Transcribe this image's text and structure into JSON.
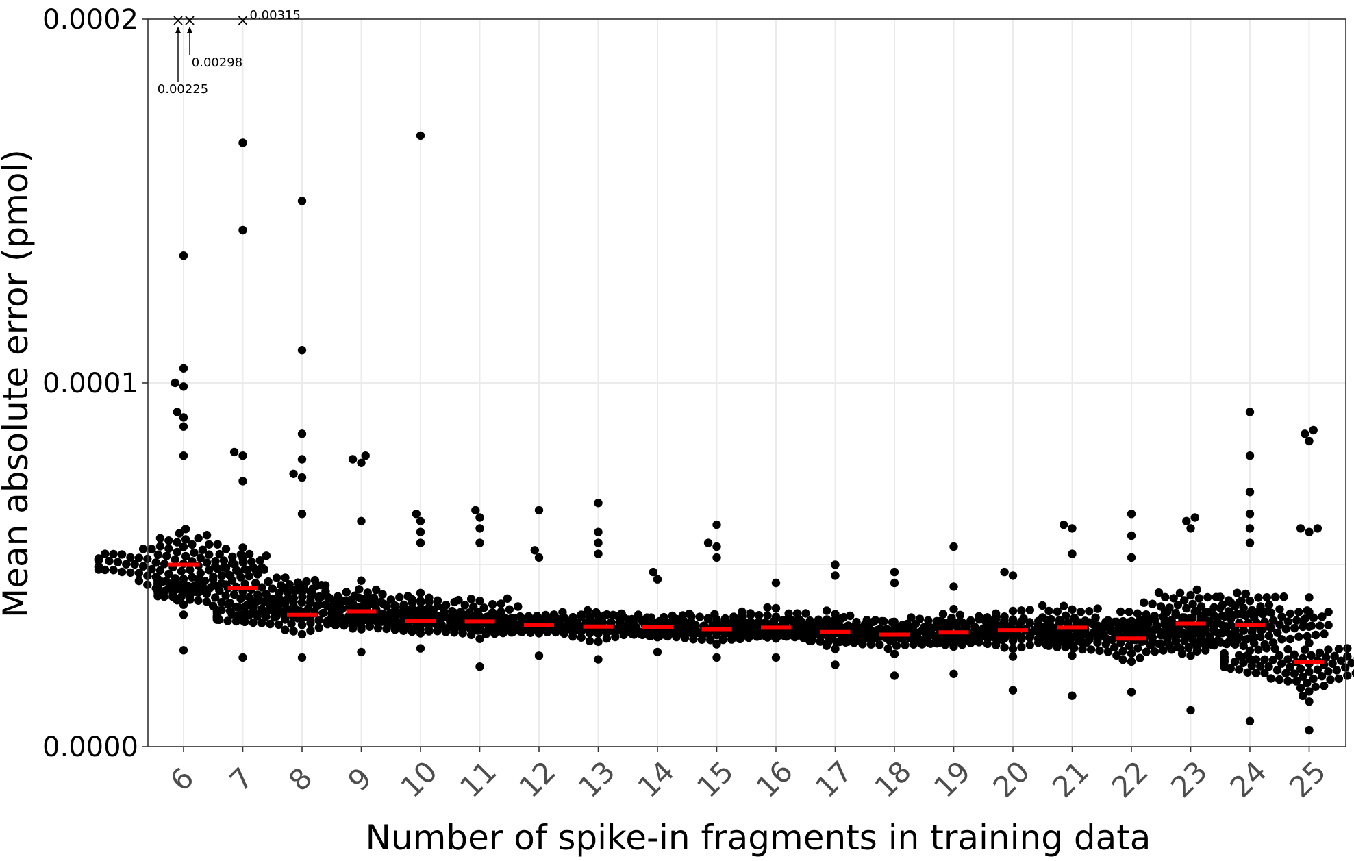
{
  "chart_data": {
    "type": "scatter",
    "xlabel": "Number of spike-in fragments in training data",
    "ylabel": "Mean absolute error (pmol)",
    "categories": [
      "6",
      "7",
      "8",
      "9",
      "10",
      "11",
      "12",
      "13",
      "14",
      "15",
      "16",
      "17",
      "18",
      "19",
      "20",
      "21",
      "22",
      "23",
      "24",
      "25"
    ],
    "ylim": [
      0,
      0.0002
    ],
    "yticks": [
      "0.0000",
      "0.0001",
      "0.0002"
    ],
    "ytick_values": [
      0,
      0.0001,
      0.0002
    ],
    "grid": true,
    "medians": [
      5e-05,
      4.35e-05,
      3.62e-05,
      3.72e-05,
      3.45e-05,
      3.44e-05,
      3.35e-05,
      3.3e-05,
      3.28e-05,
      3.23e-05,
      3.27e-05,
      3.15e-05,
      3.08e-05,
      3.14e-05,
      3.2e-05,
      3.27e-05,
      2.97e-05,
      3.38e-05,
      3.35e-05,
      2.33e-05
    ],
    "groups": [
      {
        "n": "6",
        "min": 2.65e-05,
        "q1": 3.75e-05,
        "q3": 6.1e-05,
        "max": 8e-05,
        "outliers": [
          0.000135,
          0.000104,
          0.0001,
          9.9e-05,
          9.2e-05,
          9.05e-05,
          8.8e-05
        ]
      },
      {
        "n": "7",
        "min": 2.45e-05,
        "q1": 3.3e-05,
        "q3": 5.6e-05,
        "max": 7.3e-05,
        "outliers": [
          0.000166,
          0.000142,
          8.1e-05,
          8e-05
        ]
      },
      {
        "n": "8",
        "min": 2.45e-05,
        "q1": 3.05e-05,
        "q3": 4.7e-05,
        "max": 6.4e-05,
        "outliers": [
          0.00015,
          0.000109,
          8.6e-05,
          7.9e-05,
          7.5e-05,
          7.4e-05
        ]
      },
      {
        "n": "9",
        "min": 2.6e-05,
        "q1": 3.2e-05,
        "q3": 4.5e-05,
        "max": 6.2e-05,
        "outliers": [
          8e-05,
          7.9e-05,
          7.8e-05
        ]
      },
      {
        "n": "10",
        "min": 2.7e-05,
        "q1": 3.1e-05,
        "q3": 4.2e-05,
        "max": 5.6e-05,
        "outliers": [
          0.000168,
          6.4e-05,
          6.2e-05,
          5.9e-05
        ]
      },
      {
        "n": "11",
        "min": 2.2e-05,
        "q1": 3e-05,
        "q3": 4.2e-05,
        "max": 5.6e-05,
        "outliers": [
          6.5e-05,
          6.3e-05,
          6e-05
        ]
      },
      {
        "n": "12",
        "min": 2.5e-05,
        "q1": 3.1e-05,
        "q3": 3.8e-05,
        "max": 5.2e-05,
        "outliers": [
          6.5e-05,
          5.4e-05
        ]
      },
      {
        "n": "13",
        "min": 2.4e-05,
        "q1": 3e-05,
        "q3": 3.8e-05,
        "max": 5.3e-05,
        "outliers": [
          6.7e-05,
          5.9e-05,
          5.6e-05
        ]
      },
      {
        "n": "14",
        "min": 2.6e-05,
        "q1": 3.05e-05,
        "q3": 3.7e-05,
        "max": 4.6e-05,
        "outliers": [
          4.8e-05
        ]
      },
      {
        "n": "15",
        "min": 2.45e-05,
        "q1": 2.95e-05,
        "q3": 3.8e-05,
        "max": 5.2e-05,
        "outliers": [
          6.1e-05,
          5.6e-05,
          5.5e-05
        ]
      },
      {
        "n": "16",
        "min": 2.45e-05,
        "q1": 3e-05,
        "q3": 3.8e-05,
        "max": 4.5e-05,
        "outliers": []
      },
      {
        "n": "17",
        "min": 2.25e-05,
        "q1": 2.85e-05,
        "q3": 3.7e-05,
        "max": 4.7e-05,
        "outliers": [
          5e-05
        ]
      },
      {
        "n": "18",
        "min": 1.95e-05,
        "q1": 2.8e-05,
        "q3": 3.6e-05,
        "max": 4.5e-05,
        "outliers": [
          4.8e-05
        ]
      },
      {
        "n": "19",
        "min": 2e-05,
        "q1": 2.8e-05,
        "q3": 3.7e-05,
        "max": 4.4e-05,
        "outliers": [
          5.5e-05
        ]
      },
      {
        "n": "20",
        "min": 1.55e-05,
        "q1": 2.6e-05,
        "q3": 3.8e-05,
        "max": 4.7e-05,
        "outliers": [
          4.8e-05
        ]
      },
      {
        "n": "21",
        "min": 1.4e-05,
        "q1": 2.8e-05,
        "q3": 3.9e-05,
        "max": 5.3e-05,
        "outliers": [
          6.1e-05,
          6e-05
        ]
      },
      {
        "n": "22",
        "min": 1.5e-05,
        "q1": 2.5e-05,
        "q3": 3.6e-05,
        "max": 5.2e-05,
        "outliers": [
          6.4e-05,
          5.8e-05
        ]
      },
      {
        "n": "23",
        "min": 1e-05,
        "q1": 2.7e-05,
        "q3": 4.4e-05,
        "max": 6e-05,
        "outliers": [
          6.3e-05,
          6.2e-05
        ]
      },
      {
        "n": "24",
        "min": 7e-06,
        "q1": 2.5e-05,
        "q3": 4.4e-05,
        "max": 5.6e-05,
        "outliers": [
          9.2e-05,
          8e-05,
          7e-05,
          6.4e-05,
          6e-05
        ]
      },
      {
        "n": "25",
        "min": 4.5e-06,
        "q1": 1.5e-05,
        "q3": 2.9e-05,
        "max": 3.3e-05,
        "outliers": [
          8.7e-05,
          8.6e-05,
          8.4e-05,
          6e-05,
          6e-05,
          5.9e-05,
          4.1e-05,
          3.7e-05,
          3.45e-05
        ]
      }
    ],
    "offscale_points": [
      {
        "category": "6",
        "label": "0.00225"
      },
      {
        "category": "6",
        "label": "0.00298"
      },
      {
        "category": "7",
        "label": "0.00315"
      }
    ],
    "colors": {
      "points": "#000000",
      "median": "#ff0000",
      "grid": "#ebebeb",
      "panel_border": "#333333",
      "x_tick_text": "#4d4d4d"
    }
  }
}
